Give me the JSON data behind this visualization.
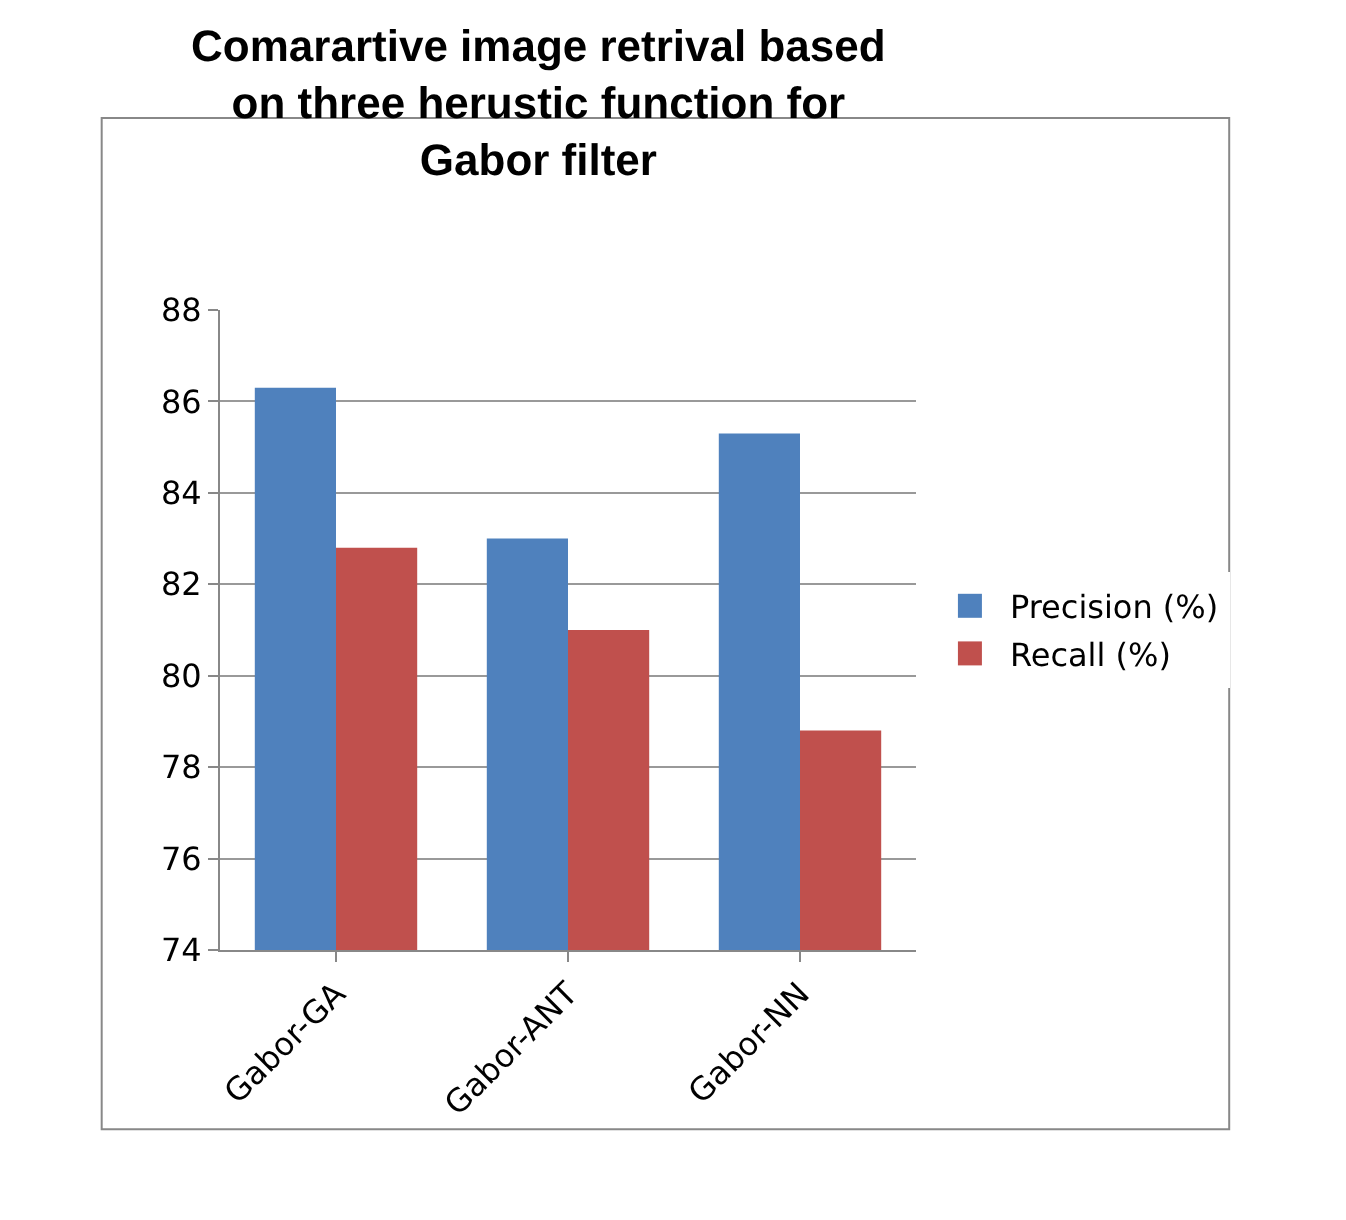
{
  "chart_data": {
    "type": "bar",
    "title": "Comarartive image retrival based on three herustic function for Gabor filter",
    "categories": [
      "Gabor-GA",
      "Gabor-ANT",
      "Gabor-NN"
    ],
    "series": [
      {
        "name": "Precision (%)",
        "color": "#4f81bd",
        "values": [
          86.3,
          83.0,
          85.3
        ]
      },
      {
        "name": "Recall (%)",
        "color": "#c0504d",
        "values": [
          82.8,
          81.0,
          78.8
        ]
      }
    ],
    "ylim": [
      74,
      88
    ],
    "yticks": [
      74,
      76,
      78,
      80,
      82,
      84,
      86,
      88
    ],
    "grid": "y",
    "legend": "right"
  }
}
